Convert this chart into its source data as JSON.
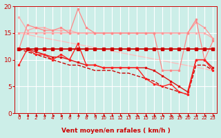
{
  "title": "",
  "xlabel": "Vent moyen/en rafales ( km/h )",
  "background_color": "#cceee8",
  "grid_color": "#ffffff",
  "xlim": [
    -0.5,
    23.5
  ],
  "ylim": [
    0,
    20
  ],
  "yticks": [
    0,
    5,
    10,
    15,
    20
  ],
  "xticks": [
    0,
    1,
    2,
    3,
    4,
    5,
    6,
    7,
    8,
    9,
    10,
    11,
    12,
    13,
    14,
    15,
    16,
    17,
    18,
    19,
    20,
    21,
    22,
    23
  ],
  "series": [
    {
      "x": [
        0,
        1,
        2,
        3,
        4,
        5,
        6,
        7,
        8,
        9,
        10,
        11,
        12,
        13,
        14,
        15,
        16,
        17,
        18,
        19,
        20,
        21,
        22,
        23
      ],
      "y": [
        18,
        15.5,
        16,
        16,
        15.5,
        15.5,
        15.5,
        15,
        15,
        15,
        15,
        15,
        15,
        15,
        15,
        15,
        15,
        15,
        15,
        15,
        15,
        15,
        15,
        14
      ],
      "color": "#ffaaaa",
      "lw": 0.9,
      "marker": "s",
      "ms": 1.8,
      "zorder": 2
    },
    {
      "x": [
        0,
        1,
        2,
        3,
        4,
        5,
        6,
        7,
        8,
        9,
        10,
        11,
        12,
        13,
        14,
        15,
        16,
        17,
        18,
        19,
        20,
        21,
        22,
        23
      ],
      "y": [
        15,
        15,
        15,
        15,
        15,
        15,
        15,
        15,
        15,
        15,
        15,
        15,
        15,
        15,
        15,
        15,
        15,
        15,
        15,
        15,
        15,
        17,
        16,
        14
      ],
      "color": "#ff9999",
      "lw": 0.9,
      "marker": "s",
      "ms": 1.8,
      "zorder": 2
    },
    {
      "x": [
        0,
        1,
        2,
        3,
        4,
        5,
        6,
        7,
        8,
        9,
        10,
        11,
        12,
        13,
        14,
        15,
        16,
        17,
        18,
        19,
        20,
        21,
        22,
        23
      ],
      "y": [
        12,
        16.5,
        16,
        15.5,
        15.5,
        16,
        15,
        19.5,
        16,
        15,
        15,
        15,
        15,
        15,
        15,
        15,
        15,
        8,
        8,
        8,
        15,
        17.5,
        10,
        13.5
      ],
      "color": "#ff8888",
      "lw": 0.9,
      "marker": "s",
      "ms": 1.8,
      "zorder": 2
    },
    {
      "x": [
        0,
        23
      ],
      "y": [
        15,
        8
      ],
      "color": "#ffbbbb",
      "lw": 0.9,
      "marker": null,
      "ms": 0,
      "zorder": 1
    },
    {
      "x": [
        0,
        1,
        2,
        3,
        4,
        5,
        6,
        7,
        8,
        9,
        10,
        11,
        12,
        13,
        14,
        15,
        16,
        17,
        18,
        19,
        20,
        21,
        22,
        23
      ],
      "y": [
        12,
        12,
        12,
        12,
        12,
        12,
        12,
        12,
        12,
        12,
        12,
        12,
        12,
        12,
        12,
        12,
        12,
        12,
        12,
        12,
        12,
        12,
        12,
        12
      ],
      "color": "#cc0000",
      "lw": 1.3,
      "marker": "s",
      "ms": 2.2,
      "zorder": 6
    },
    {
      "x": [
        0,
        1,
        2,
        3,
        4,
        5,
        6,
        7,
        8,
        9,
        10,
        11,
        12,
        13,
        14,
        15,
        16,
        17,
        18,
        19,
        20,
        21,
        22,
        23
      ],
      "y": [
        12,
        12,
        11.5,
        11,
        10.5,
        10.5,
        10,
        9.5,
        9,
        9,
        8.5,
        8.5,
        8.5,
        8.5,
        8.5,
        8.5,
        8,
        7,
        6,
        5,
        4,
        10,
        10,
        8.5
      ],
      "color": "#dd1111",
      "lw": 1.0,
      "marker": "s",
      "ms": 2.0,
      "zorder": 5
    },
    {
      "x": [
        0,
        1,
        2,
        3,
        4,
        5,
        6,
        7,
        8,
        9,
        10,
        11,
        12,
        13,
        14,
        15,
        16,
        17,
        18,
        19,
        20,
        21,
        22,
        23
      ],
      "y": [
        9,
        12,
        11,
        11,
        10,
        11,
        10,
        13,
        9,
        9,
        8.5,
        8.5,
        8.5,
        8.5,
        8.5,
        6.5,
        5.5,
        5,
        5.5,
        4,
        3.5,
        10,
        10,
        8
      ],
      "color": "#ff2222",
      "lw": 1.0,
      "marker": "s",
      "ms": 2.0,
      "zorder": 5
    },
    {
      "x": [
        0,
        1,
        2,
        3,
        4,
        5,
        6,
        7,
        8,
        9,
        10,
        11,
        12,
        13,
        14,
        15,
        16,
        17,
        18,
        19,
        20,
        21,
        22,
        23
      ],
      "y": [
        12,
        11.5,
        11,
        10.5,
        10,
        9.5,
        9,
        9,
        8.5,
        8,
        8,
        8,
        7.5,
        7.5,
        7,
        6.5,
        6,
        5,
        4.5,
        4,
        3.5,
        9,
        9,
        8
      ],
      "color": "#cc0000",
      "lw": 1.0,
      "marker": null,
      "ms": 0,
      "zorder": 4,
      "linestyle": "--"
    }
  ],
  "xlabel_color": "#cc0000",
  "tick_color": "#cc0000",
  "xlabel_fontsize": 6.5,
  "ytick_fontsize": 6.5,
  "xtick_fontsize": 5.0
}
